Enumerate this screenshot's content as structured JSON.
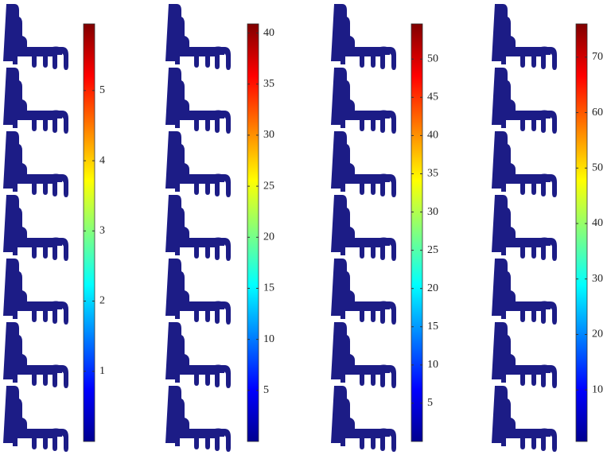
{
  "panels": [
    {
      "colorbar": {
        "range": [
          0,
          5.95
        ],
        "ticks": [
          1,
          2,
          3,
          4,
          5
        ]
      }
    },
    {
      "colorbar": {
        "range": [
          0,
          40.9
        ],
        "ticks": [
          5,
          10,
          15,
          20,
          25,
          30,
          35,
          40
        ]
      }
    },
    {
      "colorbar": {
        "range": [
          0,
          54.6
        ],
        "ticks": [
          5,
          10,
          15,
          20,
          25,
          30,
          35,
          40,
          45,
          50
        ]
      }
    },
    {
      "colorbar": {
        "range": [
          0.7,
          76
        ],
        "ticks": [
          10,
          20,
          30,
          40,
          50,
          60,
          70
        ]
      }
    }
  ]
}
